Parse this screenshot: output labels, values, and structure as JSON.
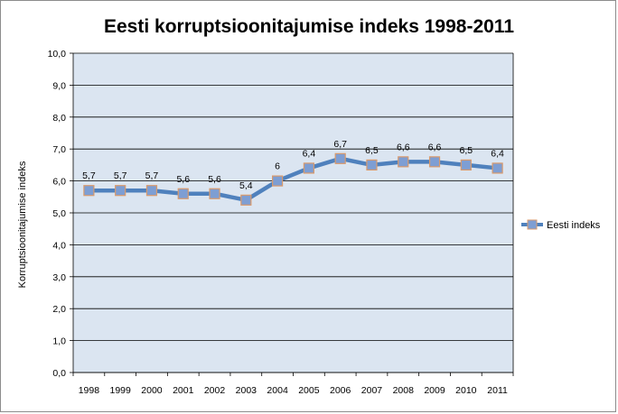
{
  "chart_data": {
    "type": "line",
    "title": "Eesti korruptsioonitajumise indeks 1998-2011",
    "xlabel": "",
    "ylabel": "Korruptsioonitajumise indeks",
    "categories": [
      "1998",
      "1999",
      "2000",
      "2001",
      "2002",
      "2003",
      "2004",
      "2005",
      "2006",
      "2007",
      "2008",
      "2009",
      "2010",
      "2011"
    ],
    "series": [
      {
        "name": "Eesti indeks",
        "values": [
          5.7,
          5.7,
          5.7,
          5.6,
          5.6,
          5.4,
          6,
          6.4,
          6.7,
          6.5,
          6.6,
          6.6,
          6.5,
          6.4
        ],
        "data_labels": [
          "5,7",
          "5,7",
          "5,7",
          "5,6",
          "5,6",
          "5,4",
          "6",
          "6,4",
          "6,7",
          "6,5",
          "6,6",
          "6,6",
          "6,5",
          "6,4"
        ],
        "line_color": "#4f81bd",
        "marker_fill": "#7e9ed3",
        "marker_edge": "#d99a6c"
      }
    ],
    "ylim": [
      0,
      10
    ],
    "y_ticks": [
      0,
      1,
      2,
      3,
      4,
      5,
      6,
      7,
      8,
      9,
      10
    ],
    "y_tick_labels": [
      "0,0",
      "1,0",
      "2,0",
      "3,0",
      "4,0",
      "5,0",
      "6,0",
      "7,0",
      "8,0",
      "9,0",
      "10,0"
    ],
    "grid": true,
    "legend_position": "right",
    "plot_background": "#dbe5f1",
    "grid_color": "#000000"
  }
}
